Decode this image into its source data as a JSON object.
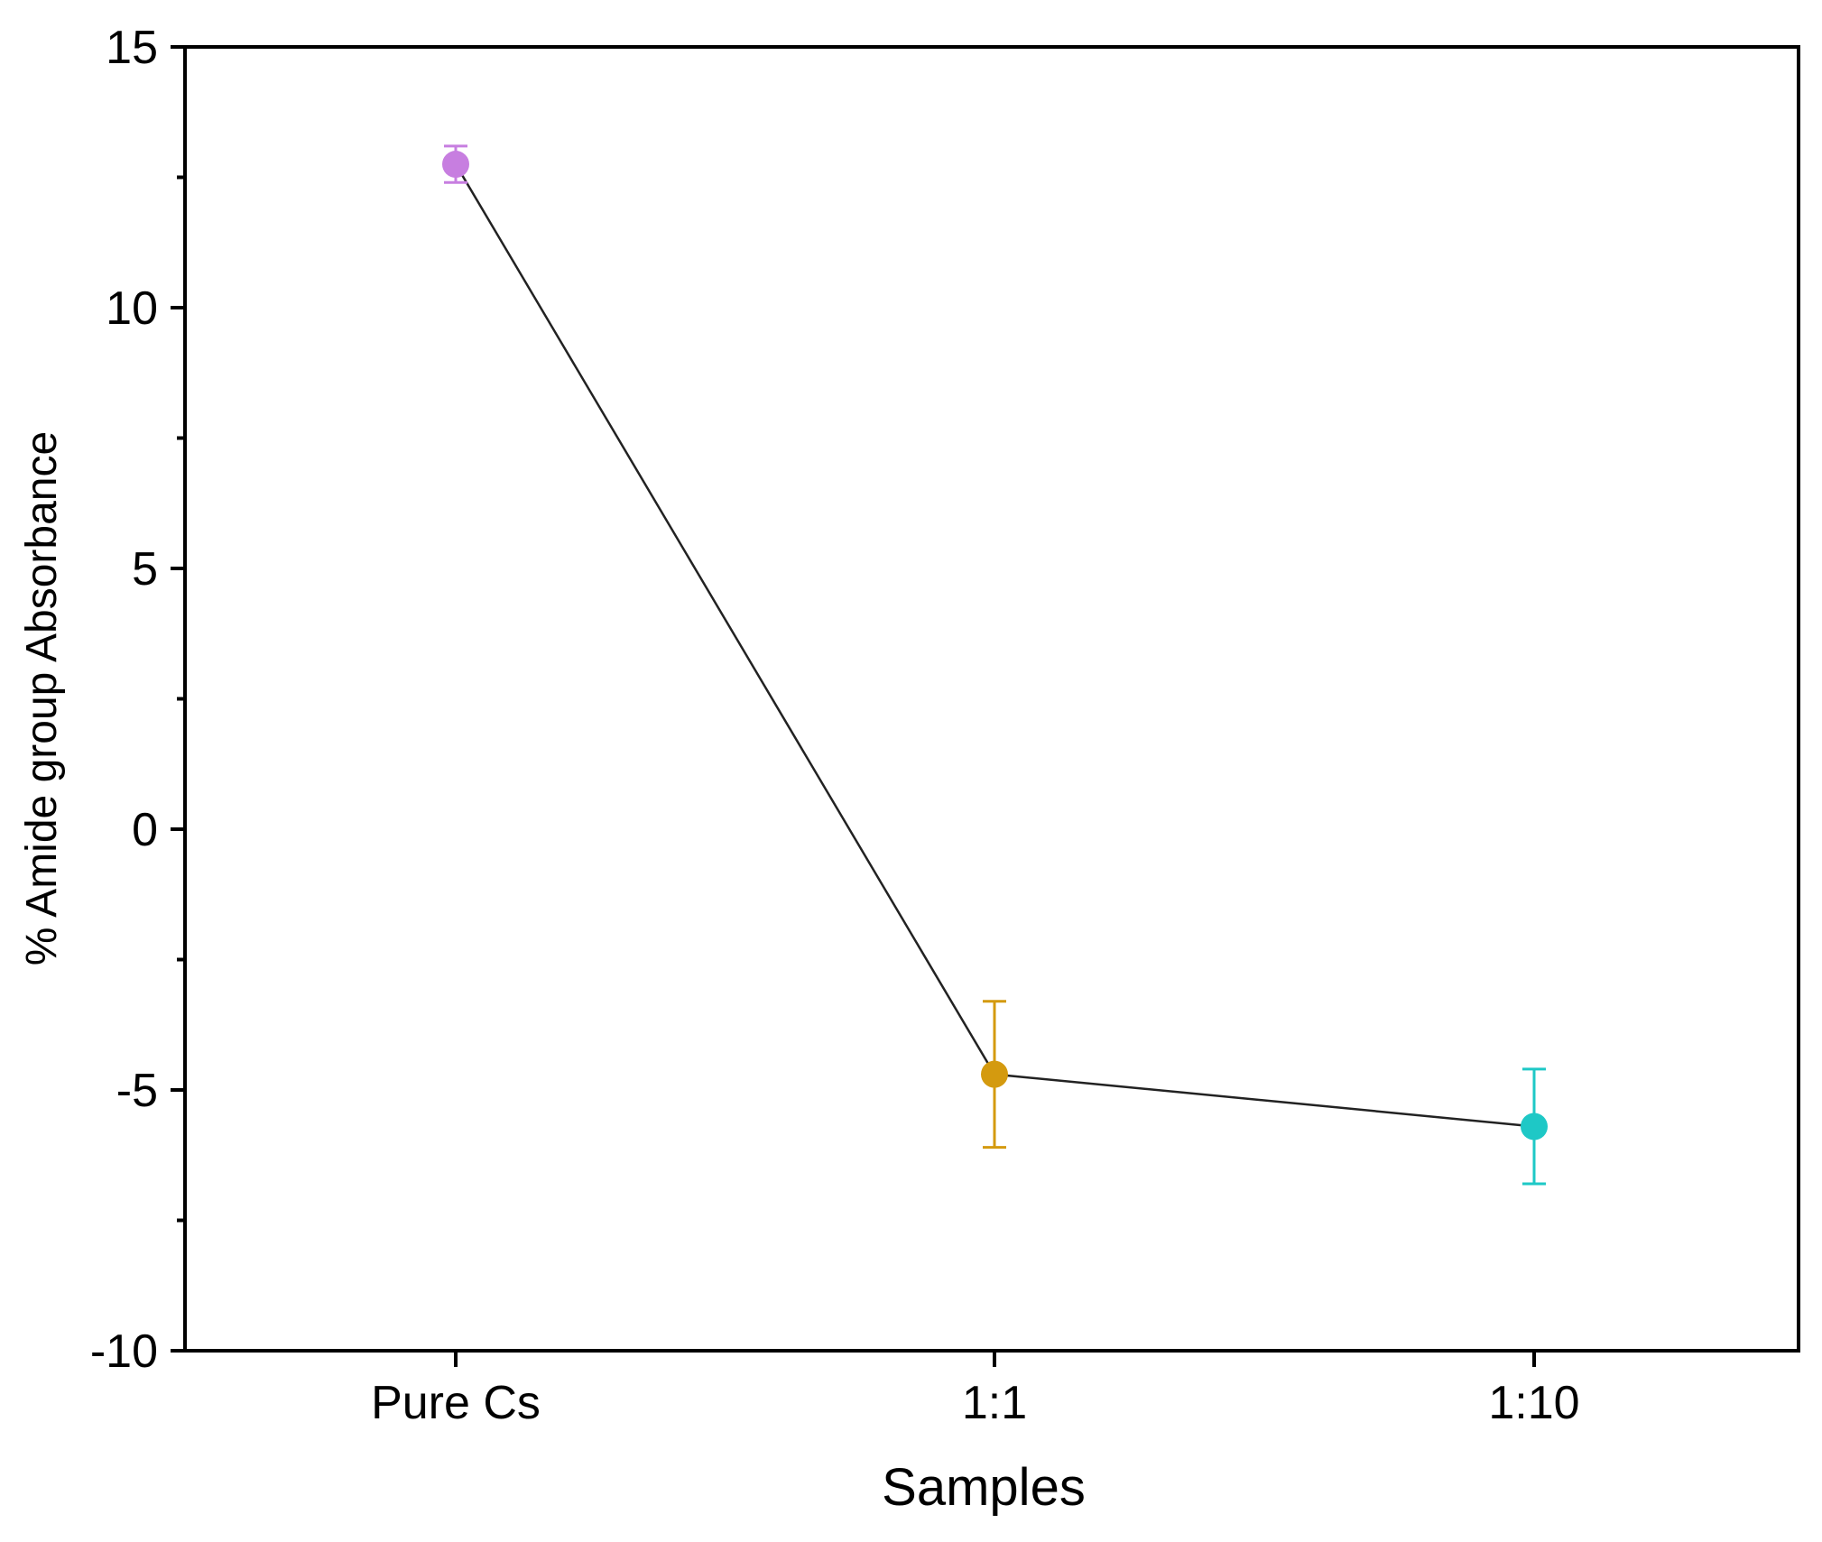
{
  "chart_data": {
    "type": "line",
    "title": "",
    "xlabel": "Samples",
    "ylabel": "% Amide group Absorbance",
    "categories": [
      "Pure Cs",
      "1:1",
      "1:10"
    ],
    "ylim": [
      -10,
      15
    ],
    "yticks": [
      -10,
      -5,
      0,
      5,
      10,
      15
    ],
    "yticks_labels": [
      "-10",
      "-5",
      "0",
      "5",
      "10",
      "15"
    ],
    "grid": false,
    "legend": "none",
    "line_color": "#222222",
    "series": [
      {
        "name": "% Amide group Absorbance",
        "values": [
          12.75,
          -4.7,
          -5.7
        ],
        "errors": [
          0.35,
          1.4,
          1.1
        ],
        "colors": [
          "#c77ee0",
          "#d49a0f",
          "#1ec8c6"
        ]
      }
    ]
  }
}
